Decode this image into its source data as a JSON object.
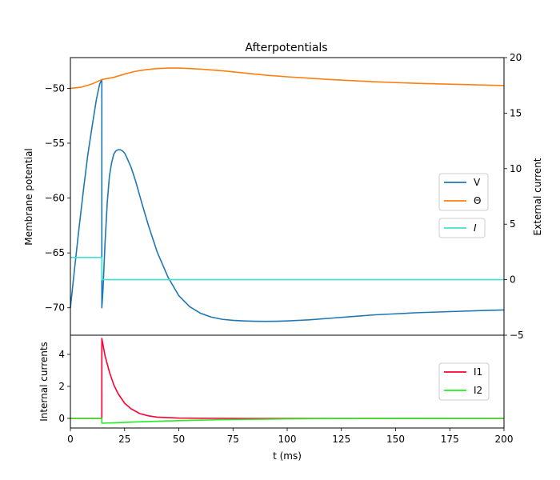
{
  "chart_data": [
    {
      "type": "line",
      "title": "Afterpotentials",
      "xlim": [
        0,
        200
      ],
      "ylim": [
        -72.5,
        -47.2
      ],
      "ylabel": "Membrane potential",
      "y2label": "External current",
      "y2lim": [
        -5,
        20
      ],
      "yticks": [
        "−70",
        "−65",
        "−60",
        "−55",
        "−50"
      ],
      "y2ticks": [
        "−5",
        "0",
        "5",
        "10",
        "15",
        "20"
      ],
      "series": [
        {
          "name": "V",
          "color": "#1f77b4",
          "axis": "left",
          "x": [
            0,
            2,
            4,
            6,
            8,
            10,
            12,
            13.5,
            14.5,
            14.5,
            15,
            16,
            17,
            18,
            19,
            20,
            21,
            22,
            23,
            24,
            25,
            26,
            28,
            30,
            33,
            36,
            40,
            45,
            50,
            55,
            60,
            65,
            70,
            75,
            80,
            85,
            90,
            95,
            100,
            110,
            120,
            130,
            140,
            150,
            160,
            175,
            190,
            200
          ],
          "y": [
            -70,
            -66.3,
            -62.7,
            -59.3,
            -56.1,
            -53.5,
            -51.0,
            -49.6,
            -49.2,
            -70,
            -68.5,
            -64.0,
            -60.4,
            -58.0,
            -56.8,
            -56.0,
            -55.7,
            -55.6,
            -55.6,
            -55.7,
            -55.9,
            -56.3,
            -57.2,
            -58.4,
            -60.5,
            -62.5,
            -64.9,
            -67.2,
            -68.9,
            -69.9,
            -70.5,
            -70.85,
            -71.05,
            -71.15,
            -71.2,
            -71.23,
            -71.24,
            -71.23,
            -71.2,
            -71.1,
            -70.95,
            -70.8,
            -70.65,
            -70.55,
            -70.45,
            -70.35,
            -70.25,
            -70.2
          ]
        },
        {
          "name": "Θ",
          "color": "#ff7f0e",
          "axis": "left",
          "x": [
            0,
            5,
            10,
            14.5,
            20,
            25,
            30,
            35,
            40,
            45,
            50,
            55,
            60,
            70,
            80,
            90,
            100,
            120,
            140,
            160,
            180,
            200
          ],
          "y": [
            -50.0,
            -49.9,
            -49.6,
            -49.2,
            -49.0,
            -48.7,
            -48.45,
            -48.3,
            -48.2,
            -48.15,
            -48.15,
            -48.2,
            -48.25,
            -48.4,
            -48.6,
            -48.8,
            -48.95,
            -49.2,
            -49.4,
            -49.55,
            -49.65,
            -49.75
          ]
        },
        {
          "name": "I",
          "color": "#40e0d0",
          "axis": "right",
          "x": [
            0,
            14.5,
            14.5,
            200
          ],
          "y": [
            2.0,
            2.0,
            0.0,
            0.0
          ]
        }
      ]
    },
    {
      "type": "line",
      "xlim": [
        0,
        200
      ],
      "ylim": [
        -0.6,
        5.2
      ],
      "xlabel": "t (ms)",
      "ylabel": "Internal currents",
      "xticks": [
        "0",
        "25",
        "50",
        "75",
        "100",
        "125",
        "150",
        "175",
        "200"
      ],
      "yticks": [
        "0",
        "2",
        "4"
      ],
      "series": [
        {
          "name": "I1",
          "color": "#ff0033",
          "x": [
            0,
            14.5,
            14.5,
            16,
            18,
            20,
            22,
            25,
            28,
            32,
            36,
            40,
            50,
            60,
            80,
            100,
            150,
            200
          ],
          "y": [
            0,
            0,
            5.0,
            3.9,
            2.9,
            2.1,
            1.55,
            0.95,
            0.6,
            0.3,
            0.16,
            0.08,
            0.02,
            0.01,
            0.0,
            0.0,
            0.0,
            0.0
          ],
          "color_key": "red"
        },
        {
          "name": "I2",
          "color": "#22ee22",
          "x": [
            0,
            14.5,
            14.5,
            20,
            30,
            40,
            50,
            60,
            70,
            80,
            90,
            100,
            120,
            140,
            160,
            200
          ],
          "y": [
            0,
            0,
            -0.3,
            -0.28,
            -0.22,
            -0.18,
            -0.14,
            -0.11,
            -0.08,
            -0.06,
            -0.045,
            -0.03,
            -0.015,
            -0.008,
            -0.004,
            0.0
          ]
        }
      ]
    }
  ]
}
